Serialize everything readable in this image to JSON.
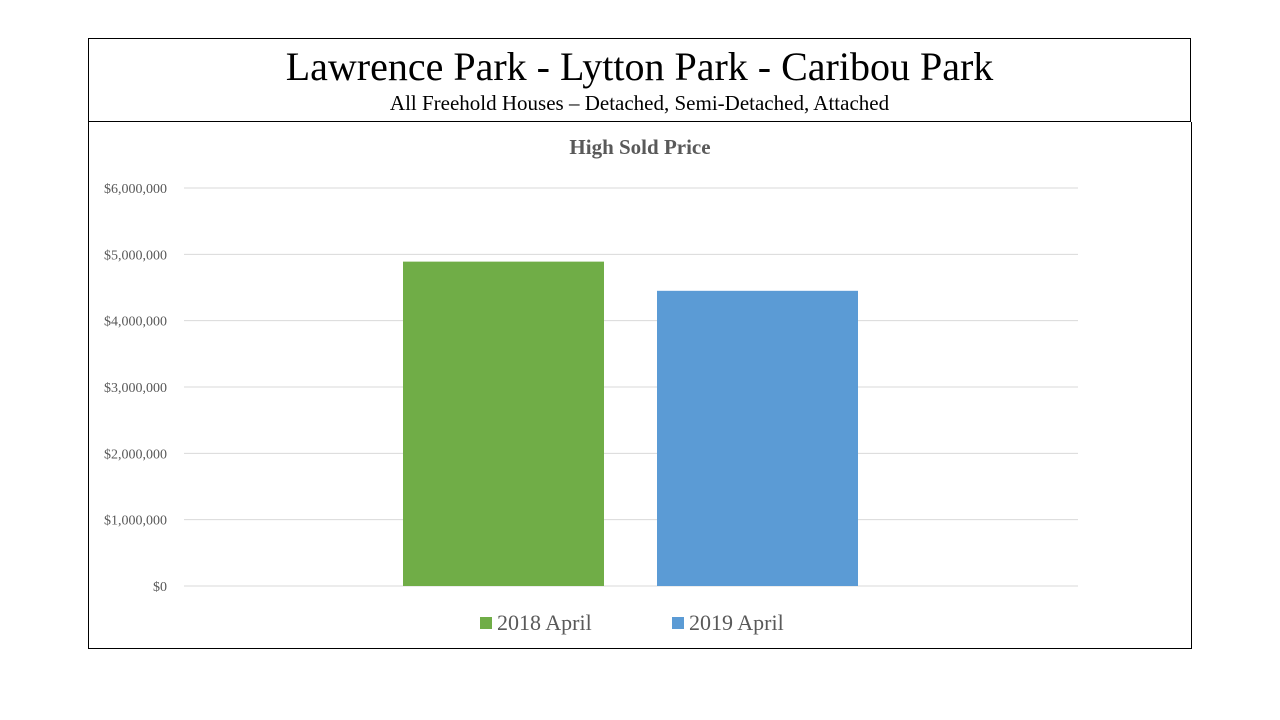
{
  "header": {
    "title": "Lawrence Park - Lytton Park - Caribou Park",
    "subtitle": "All Freehold Houses – Detached, Semi-Detached, Attached"
  },
  "chart_data": {
    "type": "bar",
    "title": "High Sold Price",
    "xlabel": "",
    "ylabel": "",
    "ylim": [
      0,
      6000000
    ],
    "yticks": [
      0,
      1000000,
      2000000,
      3000000,
      4000000,
      5000000,
      6000000
    ],
    "ytick_labels": [
      "$0",
      "$1,000,000",
      "$2,000,000",
      "$3,000,000",
      "$4,000,000",
      "$5,000,000",
      "$6,000,000"
    ],
    "grid": true,
    "legend_position": "bottom",
    "series": [
      {
        "name": "2018 April",
        "values": [
          4890000
        ],
        "color": "#70AD47"
      },
      {
        "name": "2019 April",
        "values": [
          4450000
        ],
        "color": "#5B9BD5"
      }
    ]
  }
}
